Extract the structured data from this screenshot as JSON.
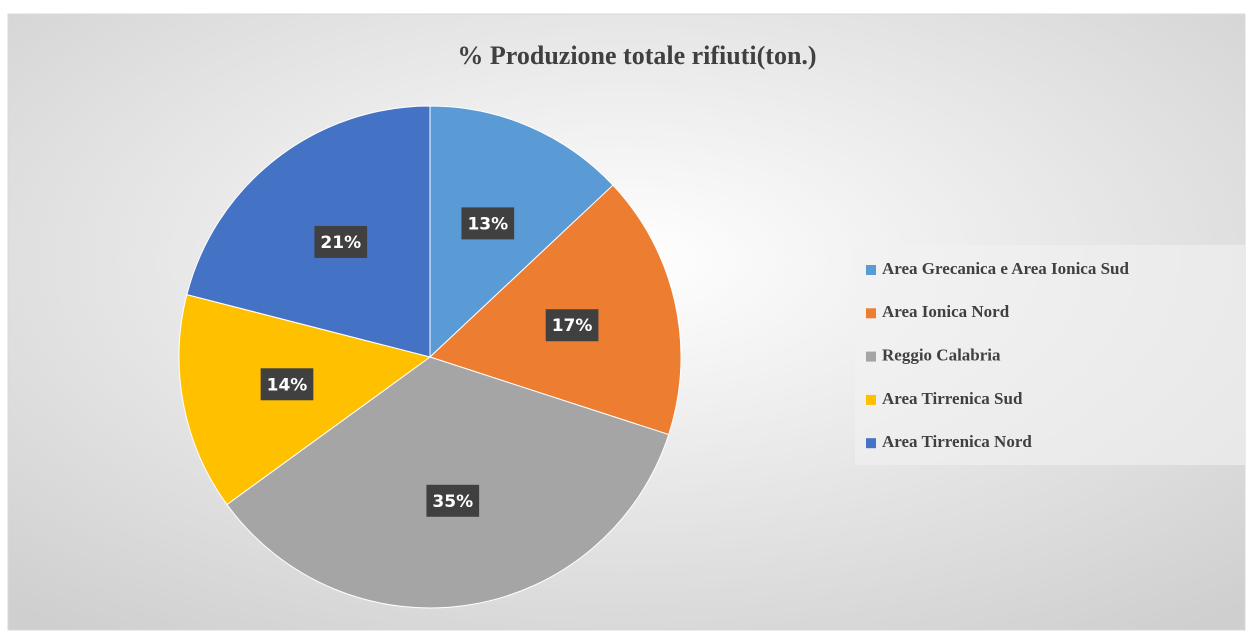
{
  "chart_data": {
    "type": "pie",
    "title": "% Produzione totale rifiuti(ton.)",
    "categories": [
      "Area Grecanica e Area Ionica Sud",
      "Area Ionica Nord",
      "Reggio Calabria",
      "Area Tirrenica Sud",
      "Area Tirrenica Nord"
    ],
    "values": [
      13,
      17,
      35,
      14,
      21
    ],
    "value_labels": [
      "13%",
      "17%",
      "35%",
      "14%",
      "21%"
    ],
    "colors": [
      "#5b9bd5",
      "#ed7d31",
      "#a5a5a5",
      "#ffc000",
      "#4472c4"
    ],
    "legend": "right"
  }
}
